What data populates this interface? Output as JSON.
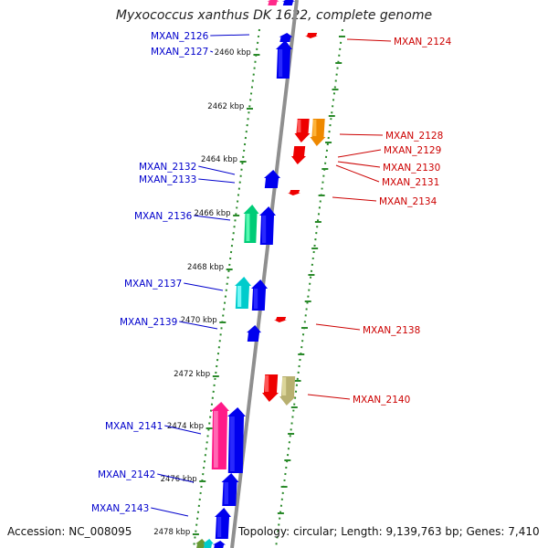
{
  "title": "Myxococcus xanthus DK 1622, complete genome",
  "footer": {
    "accession": "Accession: NC_008095",
    "topology": "Topology: circular; Length: 9,139,763 bp; Genes: 7,410"
  },
  "colors": {
    "left_label": "#0000cc",
    "right_label": "#cc0000",
    "backbone": "#9a9a9a",
    "tick": "#2a8a2a"
  },
  "kbp_ticks": [
    "2460 kbp",
    "2462 kbp",
    "2464 kbp",
    "2466 kbp",
    "2468 kbp",
    "2470 kbp",
    "2472 kbp",
    "2474 kbp",
    "2476 kbp",
    "2478 kbp"
  ],
  "left_labels": [
    "MXAN_2126",
    "MXAN_2127",
    "MXAN_2132",
    "MXAN_2133",
    "MXAN_2136",
    "MXAN_2137",
    "MXAN_2139",
    "MXAN_2141",
    "MXAN_2142",
    "MXAN_2143"
  ],
  "right_labels": [
    "MXAN_2124",
    "MXAN_2128",
    "MXAN_2129",
    "MXAN_2130",
    "MXAN_2131",
    "MXAN_2134",
    "MXAN_2138",
    "MXAN_2140"
  ]
}
